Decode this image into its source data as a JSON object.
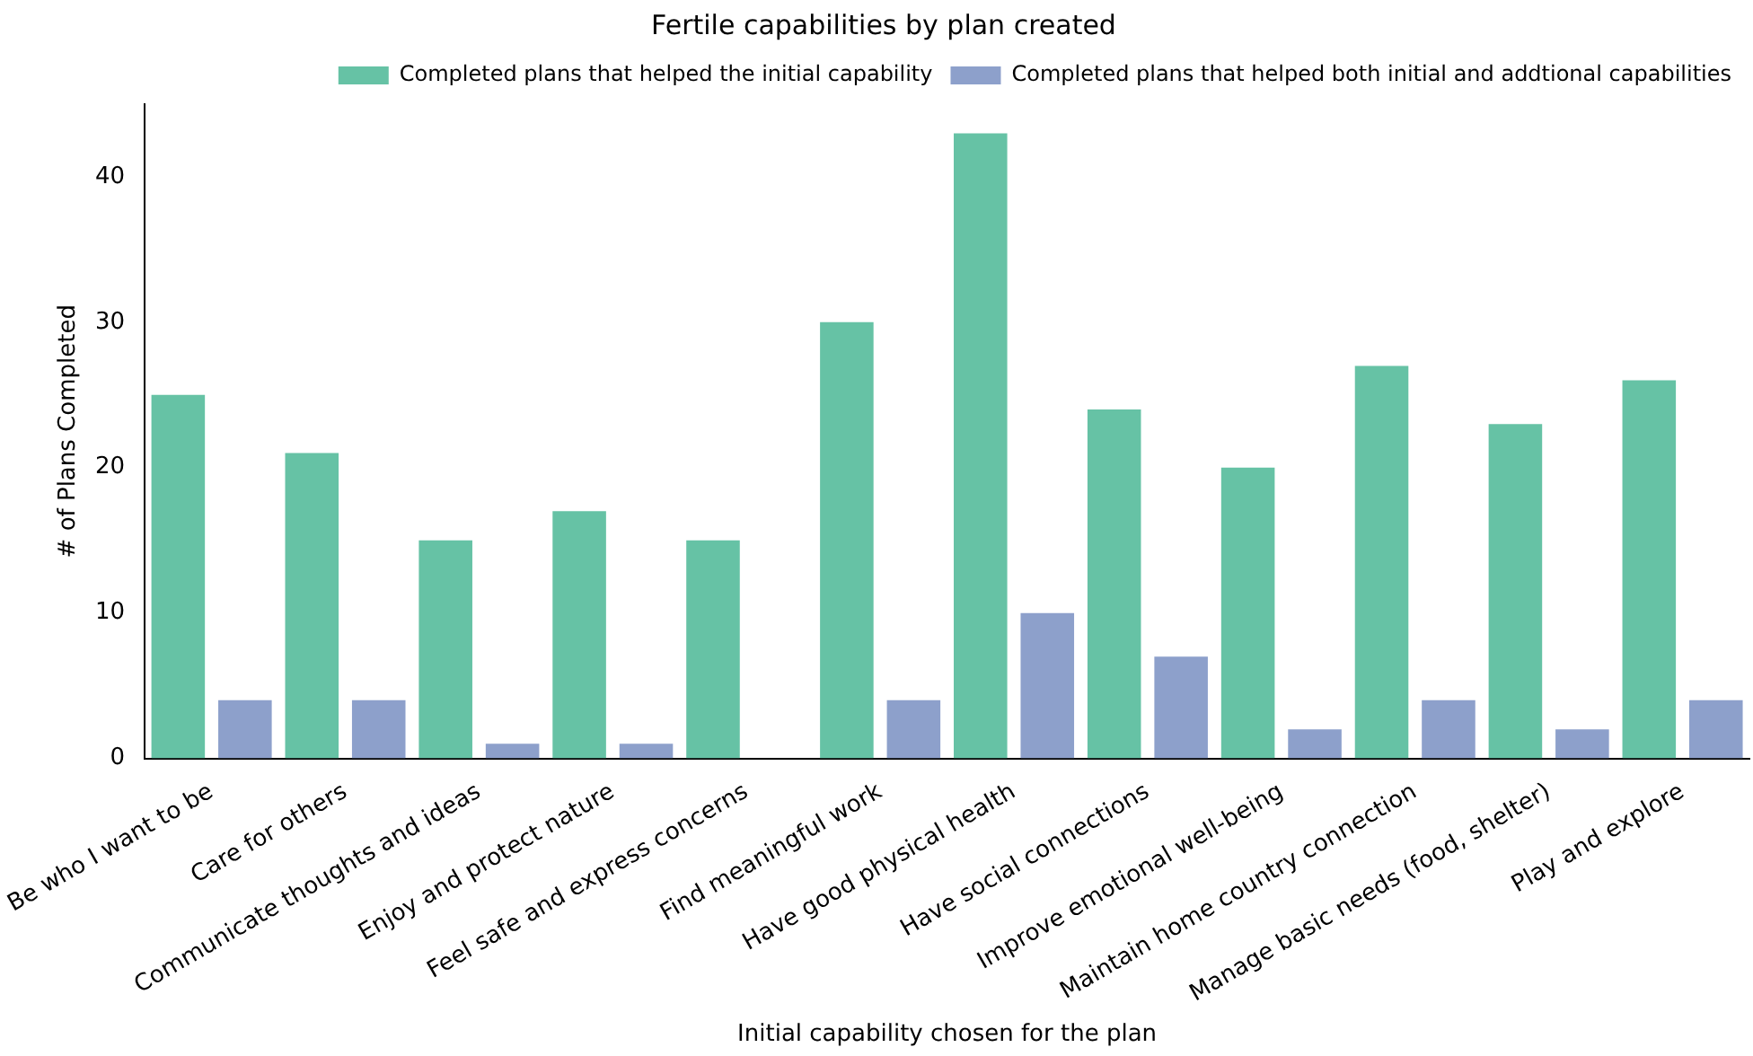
{
  "chart_data": {
    "type": "bar",
    "title": "Fertile capabilities by plan created",
    "xlabel": "Initial capability chosen for the plan",
    "ylabel": "# of Plans Completed",
    "categories": [
      "Be who I want to be",
      "Care for others",
      "Communicate thoughts and ideas",
      "Enjoy and protect nature",
      "Feel safe and express concerns",
      "Find meaningful work",
      "Have good physical health",
      "Have social connections",
      "Improve emotional well-being",
      "Maintain home country connection",
      "Manage basic needs (food, shelter)",
      "Play and explore"
    ],
    "series": [
      {
        "name": "Completed plans that helped the initial capability",
        "color": "#66c2a5",
        "values": [
          25,
          21,
          15,
          17,
          15,
          30,
          43,
          24,
          20,
          27,
          23,
          26
        ]
      },
      {
        "name": "Completed plans that helped both initial and addtional capabilities",
        "color": "#8da0cb",
        "values": [
          4,
          4,
          1,
          1,
          0,
          4,
          10,
          7,
          2,
          4,
          2,
          4
        ]
      }
    ],
    "ylim": [
      0,
      45
    ],
    "yticks": [
      0,
      10,
      20,
      30,
      40
    ],
    "grid": false,
    "legend": "top right"
  }
}
